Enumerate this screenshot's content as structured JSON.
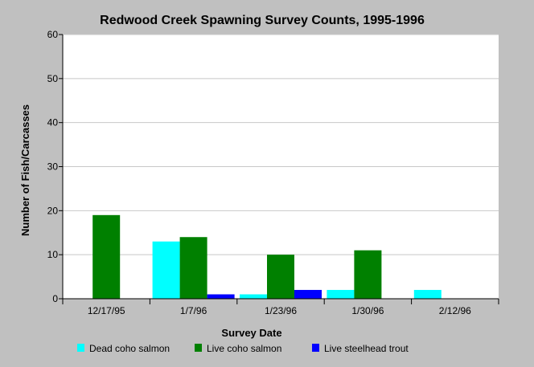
{
  "chart_data": {
    "type": "bar",
    "title": "Redwood Creek Spawning Survey Counts, 1995-1996",
    "xlabel": "Survey Date",
    "ylabel": "Number of Fish/Carcasses",
    "categories": [
      "12/17/95",
      "1/7/96",
      "1/23/96",
      "1/30/96",
      "2/12/96"
    ],
    "ylim": [
      0,
      60
    ],
    "yticks": [
      0,
      10,
      20,
      30,
      40,
      50,
      60
    ],
    "grid": true,
    "legend_position": "bottom",
    "series": [
      {
        "name": "Dead coho salmon",
        "color": "#00ffff",
        "values": [
          0,
          13,
          1,
          2,
          2
        ]
      },
      {
        "name": "Live coho salmon",
        "color": "#008000",
        "values": [
          19,
          14,
          10,
          11,
          0
        ]
      },
      {
        "name": "Live steelhead trout",
        "color": "#0000ff",
        "values": [
          0,
          1,
          2,
          0,
          0
        ]
      }
    ]
  }
}
